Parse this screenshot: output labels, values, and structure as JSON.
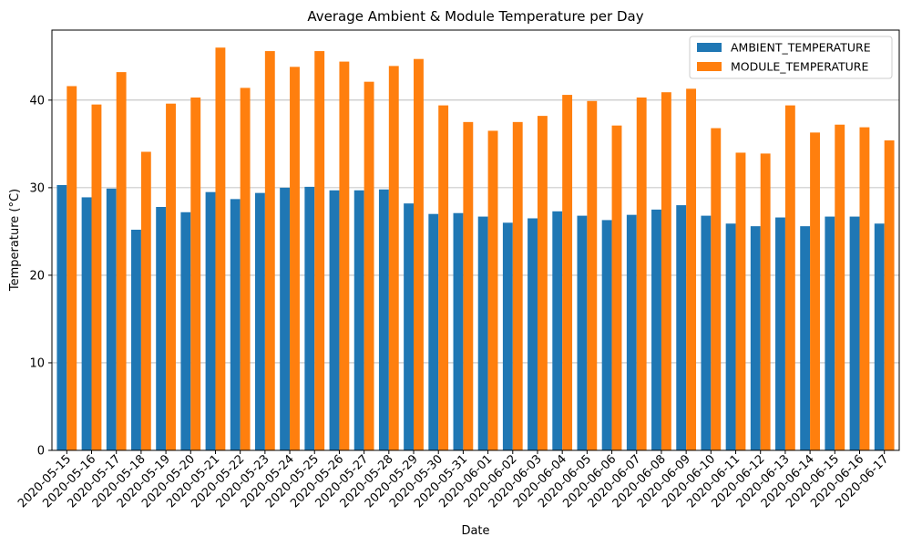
{
  "chart_data": {
    "type": "bar",
    "title": "Average Ambient & Module Temperature per Day",
    "xlabel": "Date",
    "ylabel": "Temperature (°C)",
    "ylim": [
      0,
      48
    ],
    "yticks": [
      0,
      10,
      20,
      30,
      40
    ],
    "grid": "y",
    "legend_position": "top-right",
    "categories": [
      "2020-05-15",
      "2020-05-16",
      "2020-05-17",
      "2020-05-18",
      "2020-05-19",
      "2020-05-20",
      "2020-05-21",
      "2020-05-22",
      "2020-05-23",
      "2020-05-24",
      "2020-05-25",
      "2020-05-26",
      "2020-05-27",
      "2020-05-28",
      "2020-05-29",
      "2020-05-30",
      "2020-05-31",
      "2020-06-01",
      "2020-06-02",
      "2020-06-03",
      "2020-06-04",
      "2020-06-05",
      "2020-06-06",
      "2020-06-07",
      "2020-06-08",
      "2020-06-09",
      "2020-06-10",
      "2020-06-11",
      "2020-06-12",
      "2020-06-13",
      "2020-06-14",
      "2020-06-15",
      "2020-06-16",
      "2020-06-17"
    ],
    "series": [
      {
        "name": "AMBIENT_TEMPERATURE",
        "color": "#1f77b4",
        "values": [
          30.3,
          28.9,
          29.9,
          25.2,
          27.8,
          27.2,
          29.5,
          28.7,
          29.4,
          30.0,
          30.1,
          29.7,
          29.7,
          29.8,
          28.2,
          27.0,
          27.1,
          26.7,
          26.0,
          26.5,
          27.3,
          26.8,
          26.3,
          26.9,
          27.5,
          28.0,
          26.8,
          25.9,
          25.6,
          26.6,
          25.6,
          26.7,
          26.7,
          25.9
        ]
      },
      {
        "name": "MODULE_TEMPERATURE",
        "color": "#ff7f0e",
        "values": [
          41.6,
          39.5,
          43.2,
          34.1,
          39.6,
          40.3,
          46.0,
          41.4,
          45.6,
          43.8,
          45.6,
          44.4,
          42.1,
          43.9,
          44.7,
          39.4,
          37.5,
          36.5,
          37.5,
          38.2,
          40.6,
          39.9,
          37.1,
          40.3,
          40.9,
          41.3,
          36.8,
          34.0,
          33.9,
          39.4,
          36.3,
          37.2,
          36.9,
          35.4
        ]
      }
    ]
  }
}
